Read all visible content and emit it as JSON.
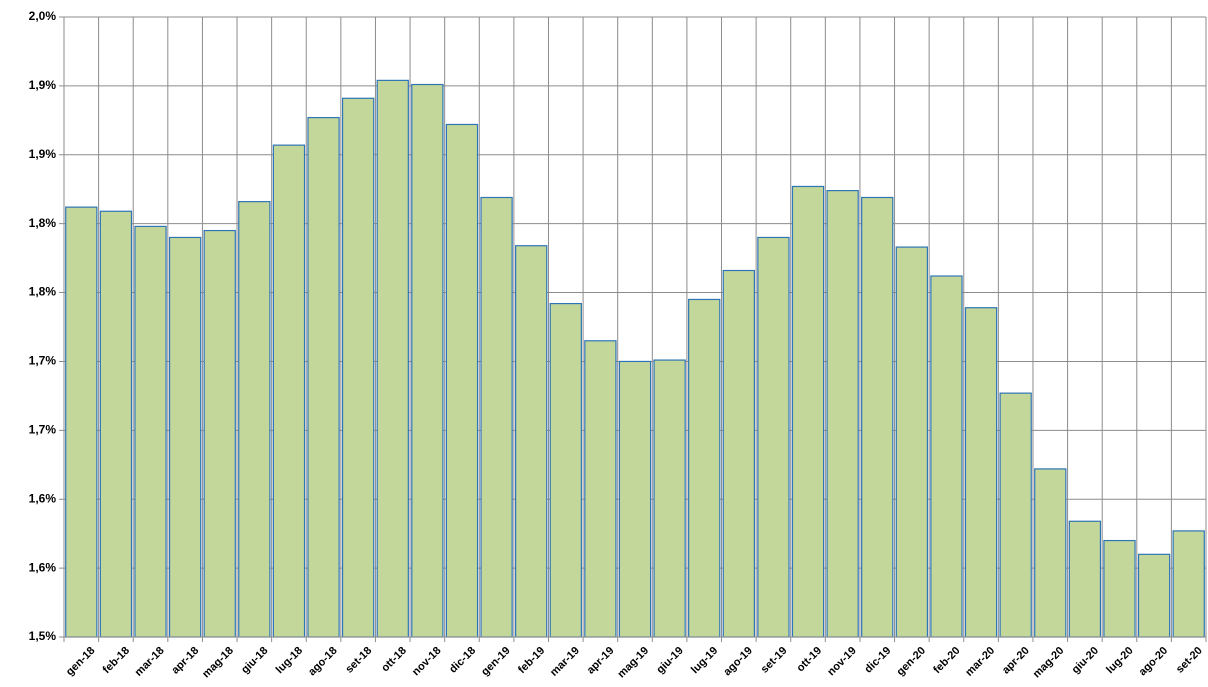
{
  "chart_data": {
    "type": "bar",
    "categories": [
      "gen-18",
      "feb-18",
      "mar-18",
      "apr-18",
      "mag-18",
      "giu-18",
      "lug-18",
      "ago-18",
      "set-18",
      "ott-18",
      "nov-18",
      "dic-18",
      "gen-19",
      "feb-19",
      "mar-19",
      "apr-19",
      "mag-19",
      "giu-19",
      "lug-19",
      "ago-19",
      "set-19",
      "ott-19",
      "nov-19",
      "dic-19",
      "gen-20",
      "feb-20",
      "mar-20",
      "apr-20",
      "mag-20",
      "giu-20",
      "lug-20",
      "ago-20",
      "set-20"
    ],
    "values": [
      1.812,
      1.809,
      1.798,
      1.79,
      1.795,
      1.816,
      1.857,
      1.877,
      1.891,
      1.904,
      1.901,
      1.872,
      1.819,
      1.784,
      1.742,
      1.715,
      1.7,
      1.701,
      1.745,
      1.766,
      1.79,
      1.827,
      1.824,
      1.819,
      1.783,
      1.762,
      1.739,
      1.677,
      1.622,
      1.584,
      1.57,
      1.56,
      1.577
    ],
    "color": "#c4d79b",
    "edge_color": "#2e75b6",
    "ylim": [
      1.5,
      1.95
    ],
    "yticks": [
      {
        "value": 1.5,
        "label": "1,5%"
      },
      {
        "value": 1.55,
        "label": "1,6%"
      },
      {
        "value": 1.6,
        "label": "1,6%"
      },
      {
        "value": 1.65,
        "label": "1,7%"
      },
      {
        "value": 1.7,
        "label": "1,7%"
      },
      {
        "value": 1.75,
        "label": "1,8%"
      },
      {
        "value": 1.8,
        "label": "1,8%"
      },
      {
        "value": 1.85,
        "label": "1,9%"
      },
      {
        "value": 1.9,
        "label": "1,9%"
      },
      {
        "value": 1.95,
        "label": "2,0%"
      }
    ],
    "grid": true
  }
}
